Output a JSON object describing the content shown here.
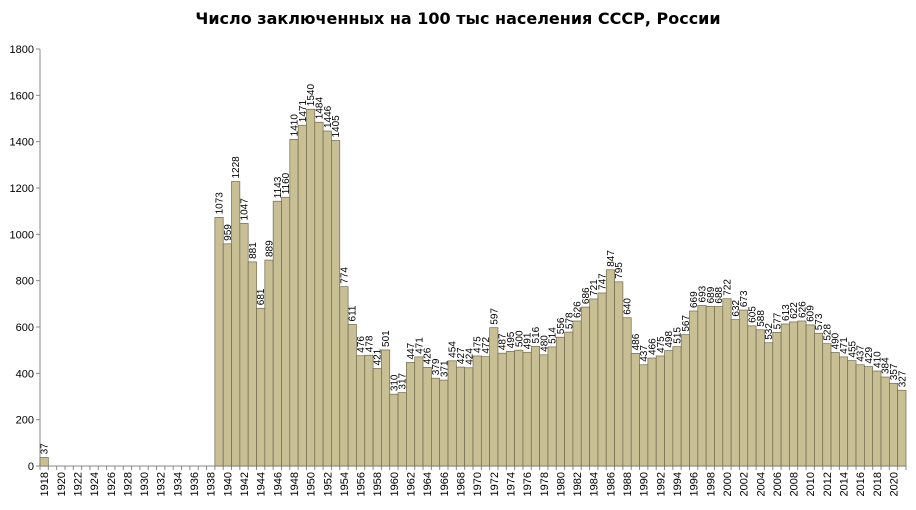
{
  "chart_data": {
    "type": "bar",
    "title": "Число заключенных  на 100 тыс населения СССР, России",
    "xlabel": "",
    "ylabel": "",
    "ylim": [
      0,
      1800
    ],
    "yticks": [
      0,
      200,
      400,
      600,
      800,
      1000,
      1200,
      1400,
      1600,
      1800
    ],
    "grid": false,
    "bar_color": "#c8bf95",
    "bar_edge_color": "#6f6a4c",
    "categories": [
      1918,
      1919,
      1920,
      1921,
      1922,
      1923,
      1924,
      1925,
      1926,
      1927,
      1928,
      1929,
      1930,
      1931,
      1932,
      1933,
      1934,
      1935,
      1936,
      1937,
      1938,
      1939,
      1940,
      1941,
      1942,
      1943,
      1944,
      1945,
      1946,
      1947,
      1948,
      1949,
      1950,
      1951,
      1952,
      1953,
      1954,
      1955,
      1956,
      1957,
      1958,
      1959,
      1960,
      1961,
      1962,
      1963,
      1964,
      1965,
      1966,
      1967,
      1968,
      1969,
      1970,
      1971,
      1972,
      1973,
      1974,
      1975,
      1976,
      1977,
      1978,
      1979,
      1980,
      1981,
      1982,
      1983,
      1984,
      1985,
      1986,
      1987,
      1988,
      1989,
      1990,
      1991,
      1992,
      1993,
      1994,
      1995,
      1996,
      1997,
      1998,
      1999,
      2000,
      2001,
      2002,
      2003,
      2004,
      2005,
      2006,
      2007,
      2008,
      2009,
      2010,
      2011,
      2012,
      2013,
      2014,
      2015,
      2016,
      2017,
      2018,
      2019,
      2020,
      2021
    ],
    "values": [
      37,
      null,
      null,
      null,
      null,
      null,
      null,
      null,
      null,
      null,
      null,
      null,
      null,
      null,
      null,
      null,
      null,
      null,
      null,
      null,
      null,
      1073,
      959,
      1228,
      1047,
      881,
      681,
      889,
      1143,
      1160,
      1410,
      1471,
      1540,
      1484,
      1446,
      1405,
      774,
      611,
      476,
      478,
      421,
      501,
      310,
      317,
      447,
      471,
      426,
      379,
      371,
      454,
      427,
      424,
      475,
      472,
      597,
      487,
      495,
      500,
      491,
      516,
      480,
      514,
      556,
      578,
      626,
      686,
      721,
      747,
      847,
      795,
      640,
      486,
      437,
      466,
      475,
      498,
      515,
      567,
      669,
      693,
      689,
      688,
      722,
      632,
      673,
      605,
      588,
      532,
      577,
      613,
      622,
      626,
      609,
      573,
      528,
      490,
      471,
      455,
      437,
      429,
      410,
      384,
      357,
      327
    ],
    "data_labels": [
      "37",
      "",
      "",
      "",
      "",
      "",
      "",
      "",
      "",
      "",
      "",
      "",
      "",
      "",
      "",
      "",
      "",
      "",
      "",
      "",
      "",
      "1073",
      "959",
      "1228",
      "1047",
      "881",
      "681",
      "889",
      "1143",
      "1160",
      "1410",
      "1471",
      "1540",
      "1484",
      "1446",
      "1405",
      "774",
      "611",
      "476",
      "478",
      "421",
      "501",
      "310",
      "317",
      "447",
      "471",
      "426",
      "379",
      "371",
      "454",
      "427",
      "424",
      "475",
      "472",
      "597",
      "487",
      "495",
      "500",
      "491",
      "516",
      "480",
      "514",
      "556",
      "578",
      "626",
      "686",
      "721",
      "747",
      "847",
      "795",
      "640",
      "486",
      "437",
      "466",
      "475",
      "498",
      "515",
      "567",
      "669",
      "693",
      "689",
      "688",
      "722",
      "632",
      "673",
      "605",
      "588",
      "532",
      "577",
      "613",
      "622",
      "626",
      "609",
      "573",
      "528",
      "490",
      "471",
      "455",
      "437",
      "429",
      "410",
      "384",
      "357",
      "327"
    ],
    "x_tick_labels": [
      "1918",
      "1920",
      "1922",
      "1924",
      "1926",
      "1928",
      "1930",
      "1932",
      "1934",
      "1936",
      "1938",
      "1940",
      "1942",
      "1944",
      "1946",
      "1948",
      "1950",
      "1952",
      "1954",
      "1956",
      "1958",
      "1960",
      "1962",
      "1964",
      "1966",
      "1968",
      "1970",
      "1972",
      "1974",
      "1976",
      "1978",
      "1980",
      "1982",
      "1984",
      "1986",
      "1988",
      "1990",
      "1992",
      "1994",
      "1996",
      "1998",
      "2000",
      "2002",
      "2004",
      "2006",
      "2008",
      "2010",
      "2012",
      "2014",
      "2016",
      "2018",
      "2020"
    ]
  }
}
